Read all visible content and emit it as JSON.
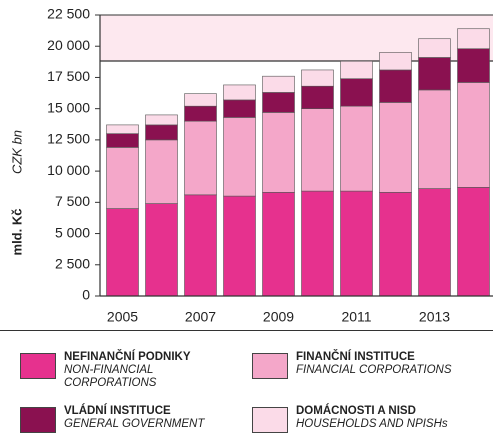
{
  "chart_data": {
    "type": "stacked-bar",
    "y_label": "mld. Kč",
    "y_label_en": "CZK bn",
    "categories": [
      "2005",
      null,
      "2007",
      null,
      "2009",
      null,
      "2011",
      null,
      "2013",
      null
    ],
    "series": [
      {
        "name": "NEFINANČNÍ PODNIKY",
        "name_en": "NON-FINANCIAL CORPORATIONS",
        "color": "#e6318e",
        "values": [
          7000,
          7400,
          8100,
          8000,
          8300,
          8400,
          8400,
          8300,
          8600,
          8700
        ]
      },
      {
        "name": "FINANČNÍ INSTITUCE",
        "name_en": "FINANCIAL CORPORATIONS",
        "color": "#f4a7c9",
        "values": [
          4900,
          5100,
          5900,
          6300,
          6400,
          6600,
          6800,
          7200,
          7900,
          8400
        ]
      },
      {
        "name": "VLÁDNÍ INSTITUCE",
        "name_en": "GENERAL GOVERNMENT",
        "color": "#8a1150",
        "values": [
          1100,
          1200,
          1200,
          1400,
          1600,
          1800,
          2200,
          2600,
          2600,
          2700
        ]
      },
      {
        "name": "DOMÁCNOSTI A NISD",
        "name_en": "HOUSEHOLDS AND NPISHs",
        "color": "#fbdbe8",
        "values": [
          700,
          800,
          1000,
          1200,
          1300,
          1300,
          1400,
          1400,
          1500,
          1600
        ]
      }
    ],
    "ylim": [
      0,
      22500
    ],
    "yticks": [
      0,
      {
        "value": 2500,
        "label": "2 500"
      },
      {
        "value": 5000,
        "label": "5 000"
      },
      {
        "value": 7500,
        "label": "7 500"
      },
      {
        "value": 10000,
        "label": "10 000"
      },
      {
        "value": 12500,
        "label": "12 500"
      },
      {
        "value": 15000,
        "label": "15 000"
      },
      {
        "value": 17500,
        "label": "17 500"
      },
      {
        "value": 20000,
        "label": "20 000"
      },
      {
        "value": 22500,
        "label": "22 500"
      }
    ],
    "grid": false
  }
}
